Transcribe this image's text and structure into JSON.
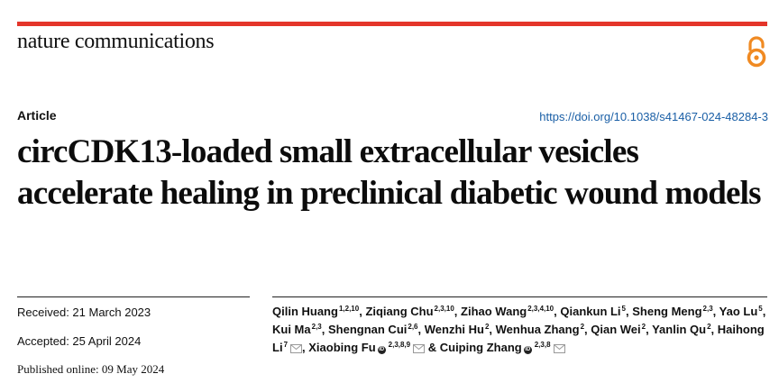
{
  "header": {
    "journal": "nature communications",
    "article_type": "Article",
    "doi": "https://doi.org/10.1038/s41467-024-48284-3",
    "accent_color": "#e4352a",
    "icon": "open-access-icon"
  },
  "title": "circCDK13-loaded small extracellular vesicles accelerate healing in preclinical diabetic wound models",
  "dates": {
    "received": "Received: 21 March 2023",
    "accepted": "Accepted: 25 April 2024",
    "published": "Published online: 09 May 2024"
  },
  "authors": [
    {
      "name": "Qilin Huang",
      "aff": "1,2,10"
    },
    {
      "name": "Ziqiang Chu",
      "aff": "2,3,10"
    },
    {
      "name": "Zihao Wang",
      "aff": "2,3,4,10"
    },
    {
      "name": "Qiankun Li",
      "aff": "5"
    },
    {
      "name": "Sheng Meng",
      "aff": "2,3"
    },
    {
      "name": "Yao Lu",
      "aff": "5"
    },
    {
      "name": "Kui Ma",
      "aff": "2,3"
    },
    {
      "name": "Shengnan Cui",
      "aff": "2,6"
    },
    {
      "name": "Wenzhi Hu",
      "aff": "2"
    },
    {
      "name": "Wenhua Zhang",
      "aff": "2"
    },
    {
      "name": "Qian Wei",
      "aff": "2"
    },
    {
      "name": "Yanlin Qu",
      "aff": "2"
    },
    {
      "name": "Haihong Li",
      "aff": "7",
      "mail": true
    },
    {
      "name": "Xiaobing Fu",
      "aff": "2,3,8,9",
      "orcid": true,
      "mail": true
    },
    {
      "name": "Cuiping Zhang",
      "aff": "2,3,8",
      "orcid": true,
      "mail": true,
      "prefix": "& "
    }
  ]
}
